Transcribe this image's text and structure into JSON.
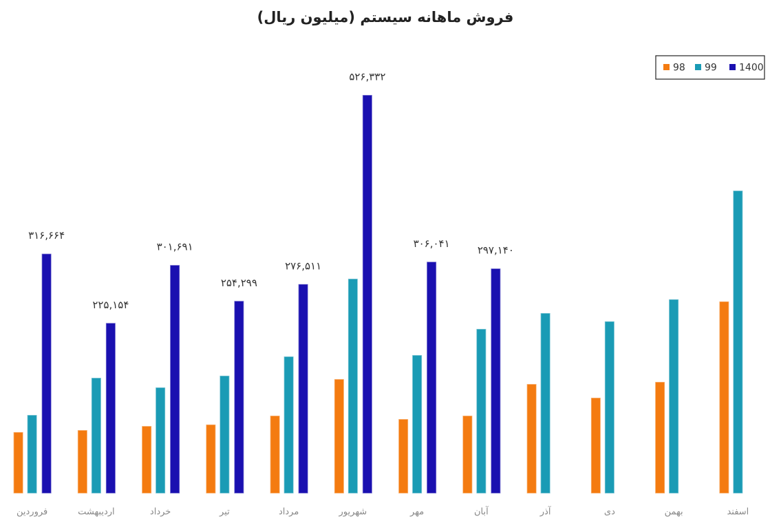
{
  "chart_data": {
    "type": "bar",
    "title": "فروش ماهانه سیستم (میلیون ریال)",
    "categories": [
      "فروردین",
      "اردیبهشت",
      "خرداد",
      "تیر",
      "مرداد",
      "شهریور",
      "مهر",
      "آبان",
      "آذر",
      "دی",
      "بهمن",
      "اسفند"
    ],
    "series": [
      {
        "name": "98",
        "color": "#f47b10",
        "values": [
          81000,
          83600,
          89000,
          91000,
          102700,
          151000,
          98200,
          102700,
          144500,
          126400,
          147300,
          253600
        ]
      },
      {
        "name": "99",
        "color": "#1a9bb5",
        "values": [
          103600,
          152700,
          140000,
          155500,
          180900,
          283600,
          182700,
          217300,
          238200,
          227300,
          256400,
          400000
        ]
      },
      {
        "name": "1400",
        "color": "#1a10b0",
        "values": [
          316664,
          225154,
          301691,
          254299,
          276511,
          526332,
          306041,
          297140,
          null,
          null,
          null,
          null
        ],
        "value_labels": [
          "۳۱۶,۶۶۴",
          "۲۲۵,۱۵۴",
          "۳۰۱,۶۹۱",
          "۲۵۴,۲۹۹",
          "۲۷۶,۵۱۱",
          "۵۲۶,۳۳۲",
          "۳۰۶,۰۴۱",
          "۲۹۷,۱۴۰",
          null,
          null,
          null,
          null
        ]
      }
    ],
    "ylim": [
      0,
      580000
    ],
    "legend": "top-right"
  }
}
